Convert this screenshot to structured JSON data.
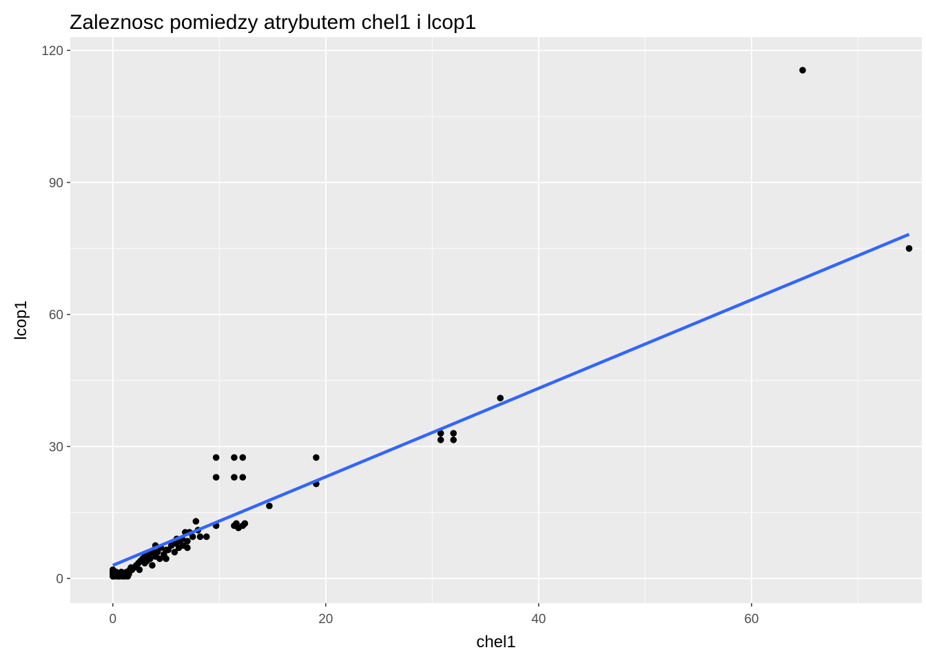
{
  "chart_data": {
    "type": "scatter",
    "title": "Zaleznosc pomiedzy atrybutem chel1 i lcop1",
    "xlabel": "chel1",
    "ylabel": "lcop1",
    "xlim": [
      -4,
      76
    ],
    "ylim": [
      -5.6,
      123
    ],
    "x_ticks": [
      0,
      20,
      40,
      60
    ],
    "y_ticks": [
      0,
      30,
      60,
      90,
      120
    ],
    "x_tick_labels": [
      "0",
      "20",
      "40",
      "60"
    ],
    "y_tick_labels": [
      "0",
      "30",
      "60",
      "90",
      "120"
    ],
    "grid": true,
    "colors": {
      "panel_background": "#ebebeb",
      "grid": "#ffffff",
      "points": "#000000",
      "trend_line": "#3366ff"
    },
    "points": [
      [
        0,
        0.5
      ],
      [
        0,
        1
      ],
      [
        0,
        1.5
      ],
      [
        0,
        2
      ],
      [
        0.1,
        0.5
      ],
      [
        0.2,
        1
      ],
      [
        0.3,
        1.5
      ],
      [
        0.4,
        0.5
      ],
      [
        0.5,
        1
      ],
      [
        0.6,
        0.5
      ],
      [
        0.7,
        1
      ],
      [
        0.8,
        1.5
      ],
      [
        0.9,
        0.5
      ],
      [
        1,
        1
      ],
      [
        1.1,
        0.5
      ],
      [
        1.2,
        1
      ],
      [
        1.3,
        1.5
      ],
      [
        1.4,
        0.5
      ],
      [
        1.5,
        1
      ],
      [
        1.6,
        2
      ],
      [
        1.7,
        2.5
      ],
      [
        1.8,
        2
      ],
      [
        2,
        2.5
      ],
      [
        2.2,
        3
      ],
      [
        2.4,
        3.5
      ],
      [
        2.5,
        2
      ],
      [
        2.6,
        4
      ],
      [
        2.8,
        4.5
      ],
      [
        3,
        3.5
      ],
      [
        3,
        5
      ],
      [
        3.2,
        4
      ],
      [
        3.4,
        5.5
      ],
      [
        3.5,
        4.5
      ],
      [
        3.7,
        3
      ],
      [
        3.8,
        6
      ],
      [
        4,
        5
      ],
      [
        4,
        7.5
      ],
      [
        4.2,
        6
      ],
      [
        4.4,
        4.5
      ],
      [
        4.5,
        7
      ],
      [
        4.8,
        5.5
      ],
      [
        5,
        4.5
      ],
      [
        5,
        6.5
      ],
      [
        5.2,
        6.5
      ],
      [
        5.5,
        7.5
      ],
      [
        5.8,
        6
      ],
      [
        5.9,
        8
      ],
      [
        6,
        9
      ],
      [
        6.2,
        7
      ],
      [
        6.3,
        8.5
      ],
      [
        6.5,
        9
      ],
      [
        6.6,
        7.5
      ],
      [
        6.8,
        10.5
      ],
      [
        7,
        7
      ],
      [
        7,
        8.5
      ],
      [
        7.2,
        10.5
      ],
      [
        7.5,
        9.5
      ],
      [
        7.8,
        13
      ],
      [
        8,
        11
      ],
      [
        8.2,
        9.5
      ],
      [
        8.8,
        9.5
      ],
      [
        9.7,
        12
      ],
      [
        9.7,
        23
      ],
      [
        9.7,
        27.5
      ],
      [
        11.4,
        12
      ],
      [
        11.4,
        23
      ],
      [
        11.4,
        27.5
      ],
      [
        11.6,
        12.5
      ],
      [
        11.8,
        11.5
      ],
      [
        12.2,
        12
      ],
      [
        12.2,
        23
      ],
      [
        12.2,
        27.5
      ],
      [
        12.4,
        12.5
      ],
      [
        14.7,
        16.5
      ],
      [
        19.1,
        21.5
      ],
      [
        19.1,
        27.5
      ],
      [
        30.8,
        31.5
      ],
      [
        30.8,
        33
      ],
      [
        32,
        31.5
      ],
      [
        32,
        33
      ],
      [
        36.4,
        41
      ],
      [
        64.8,
        115.5
      ],
      [
        74.8,
        75
      ]
    ],
    "trend_line": [
      [
        0,
        3
      ],
      [
        74.8,
        78.2
      ]
    ]
  }
}
